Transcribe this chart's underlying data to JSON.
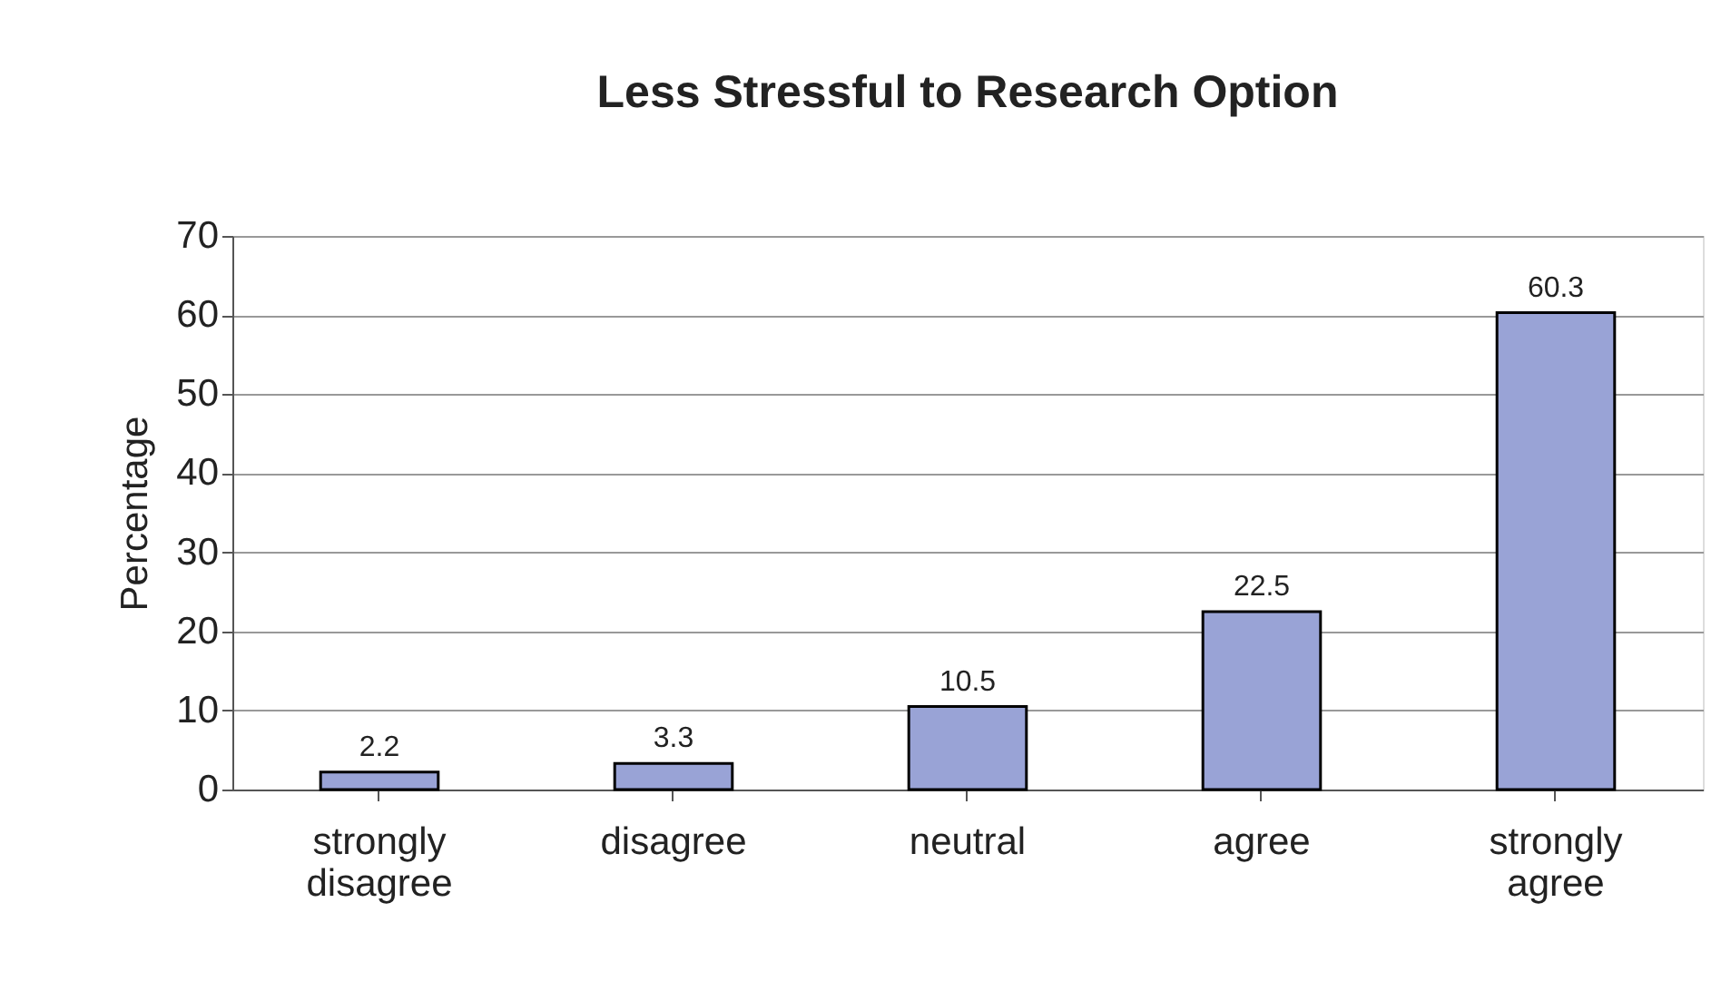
{
  "chart_data": {
    "type": "bar",
    "title": "Less Stressful to Research Option",
    "ylabel": "Percentage",
    "categories": [
      "strongly disagree",
      "disagree",
      "neutral",
      "agree",
      "strongly agree"
    ],
    "values": [
      2.2,
      3.3,
      10.5,
      22.5,
      60.3
    ],
    "color": "#99a3d6",
    "ylim": [
      0,
      70
    ],
    "yticks": [
      0,
      10,
      20,
      30,
      40,
      50,
      60,
      70
    ],
    "grid": "y",
    "data_labels": true
  }
}
